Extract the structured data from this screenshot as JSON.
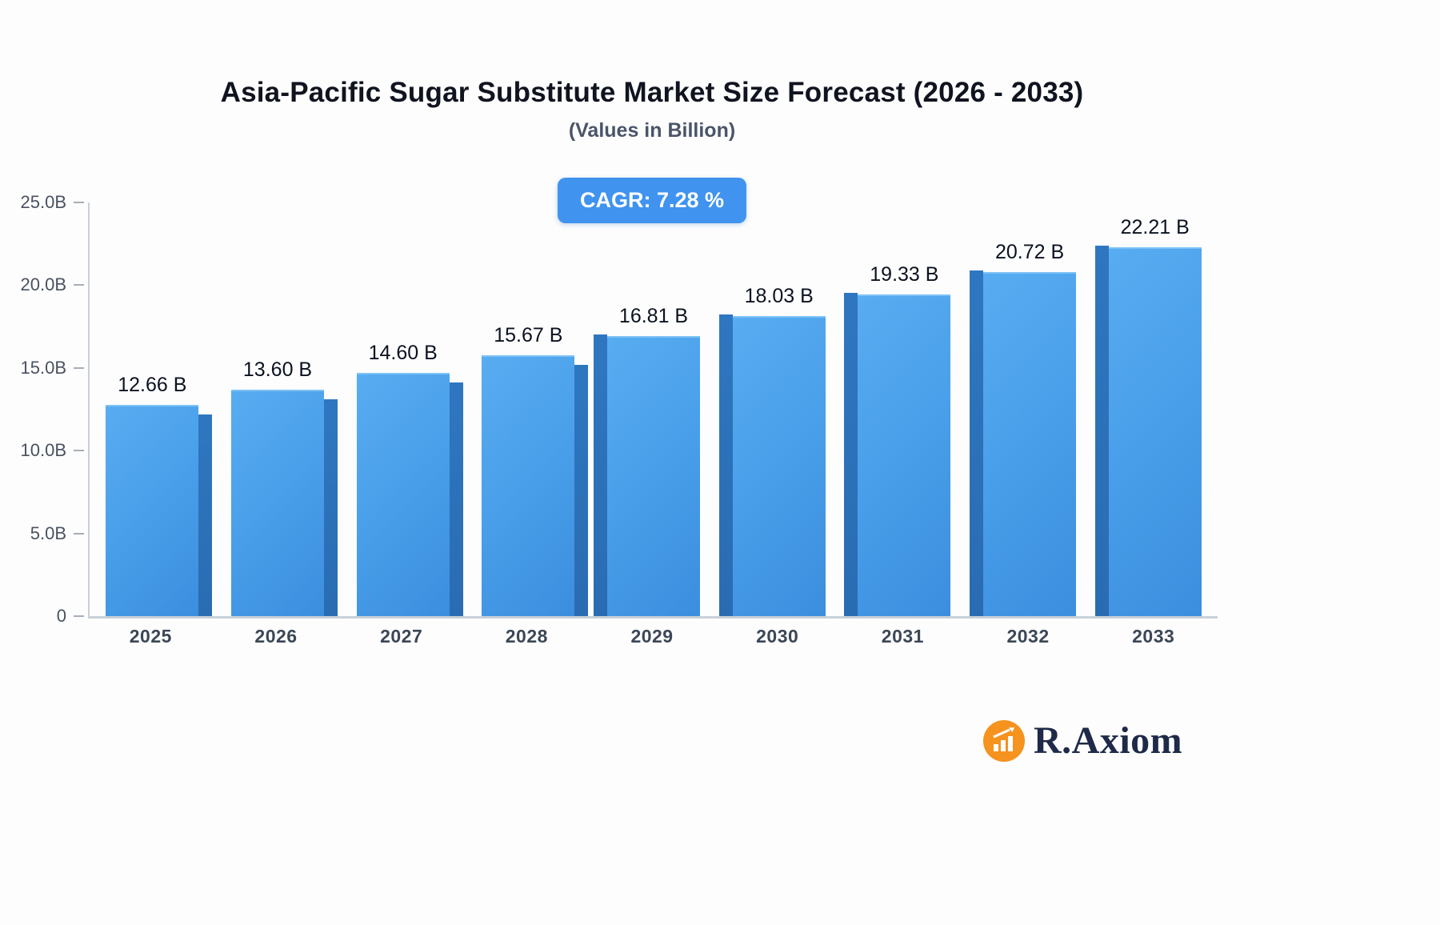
{
  "header": {
    "title": "Asia-Pacific Sugar Substitute Market Size Forecast (2026 - 2033)",
    "subtitle": "(Values in Billion)"
  },
  "badge": {
    "label": "CAGR: 7.28 %"
  },
  "chart_data": {
    "type": "bar",
    "title": "Asia-Pacific Sugar Substitute Market Size Forecast (2026 - 2033)",
    "subtitle": "(Values in Billion)",
    "categories": [
      "2025",
      "2026",
      "2027",
      "2028",
      "2029",
      "2030",
      "2031",
      "2032",
      "2033"
    ],
    "values": [
      12.66,
      13.6,
      14.6,
      15.67,
      16.81,
      18.03,
      19.33,
      20.72,
      22.21
    ],
    "value_labels": [
      "12.66 B",
      "13.60 B",
      "14.60 B",
      "15.67 B",
      "16.81 B",
      "18.03 B",
      "19.33 B",
      "20.72 B",
      "22.21 B"
    ],
    "unit": "Billion",
    "cagr": "7.28 %",
    "xlabel": "",
    "ylabel": "",
    "ylim": [
      0,
      25
    ],
    "y_ticks": [
      {
        "value": 0,
        "label": "0"
      },
      {
        "value": 5,
        "label": "5.0B"
      },
      {
        "value": 10,
        "label": "10.0B"
      },
      {
        "value": 15,
        "label": "15.0B"
      },
      {
        "value": 20,
        "label": "20.0B"
      },
      {
        "value": 25,
        "label": "25.0B"
      }
    ],
    "grid": false,
    "legend": false,
    "bar_color": "#45a1ea",
    "bar_side_color": "#2e77c0",
    "badge_color": "#4093ef"
  },
  "logo": {
    "text": "R.Axiom",
    "icon": "bar-chart-icon",
    "icon_color": "#f6921e"
  }
}
